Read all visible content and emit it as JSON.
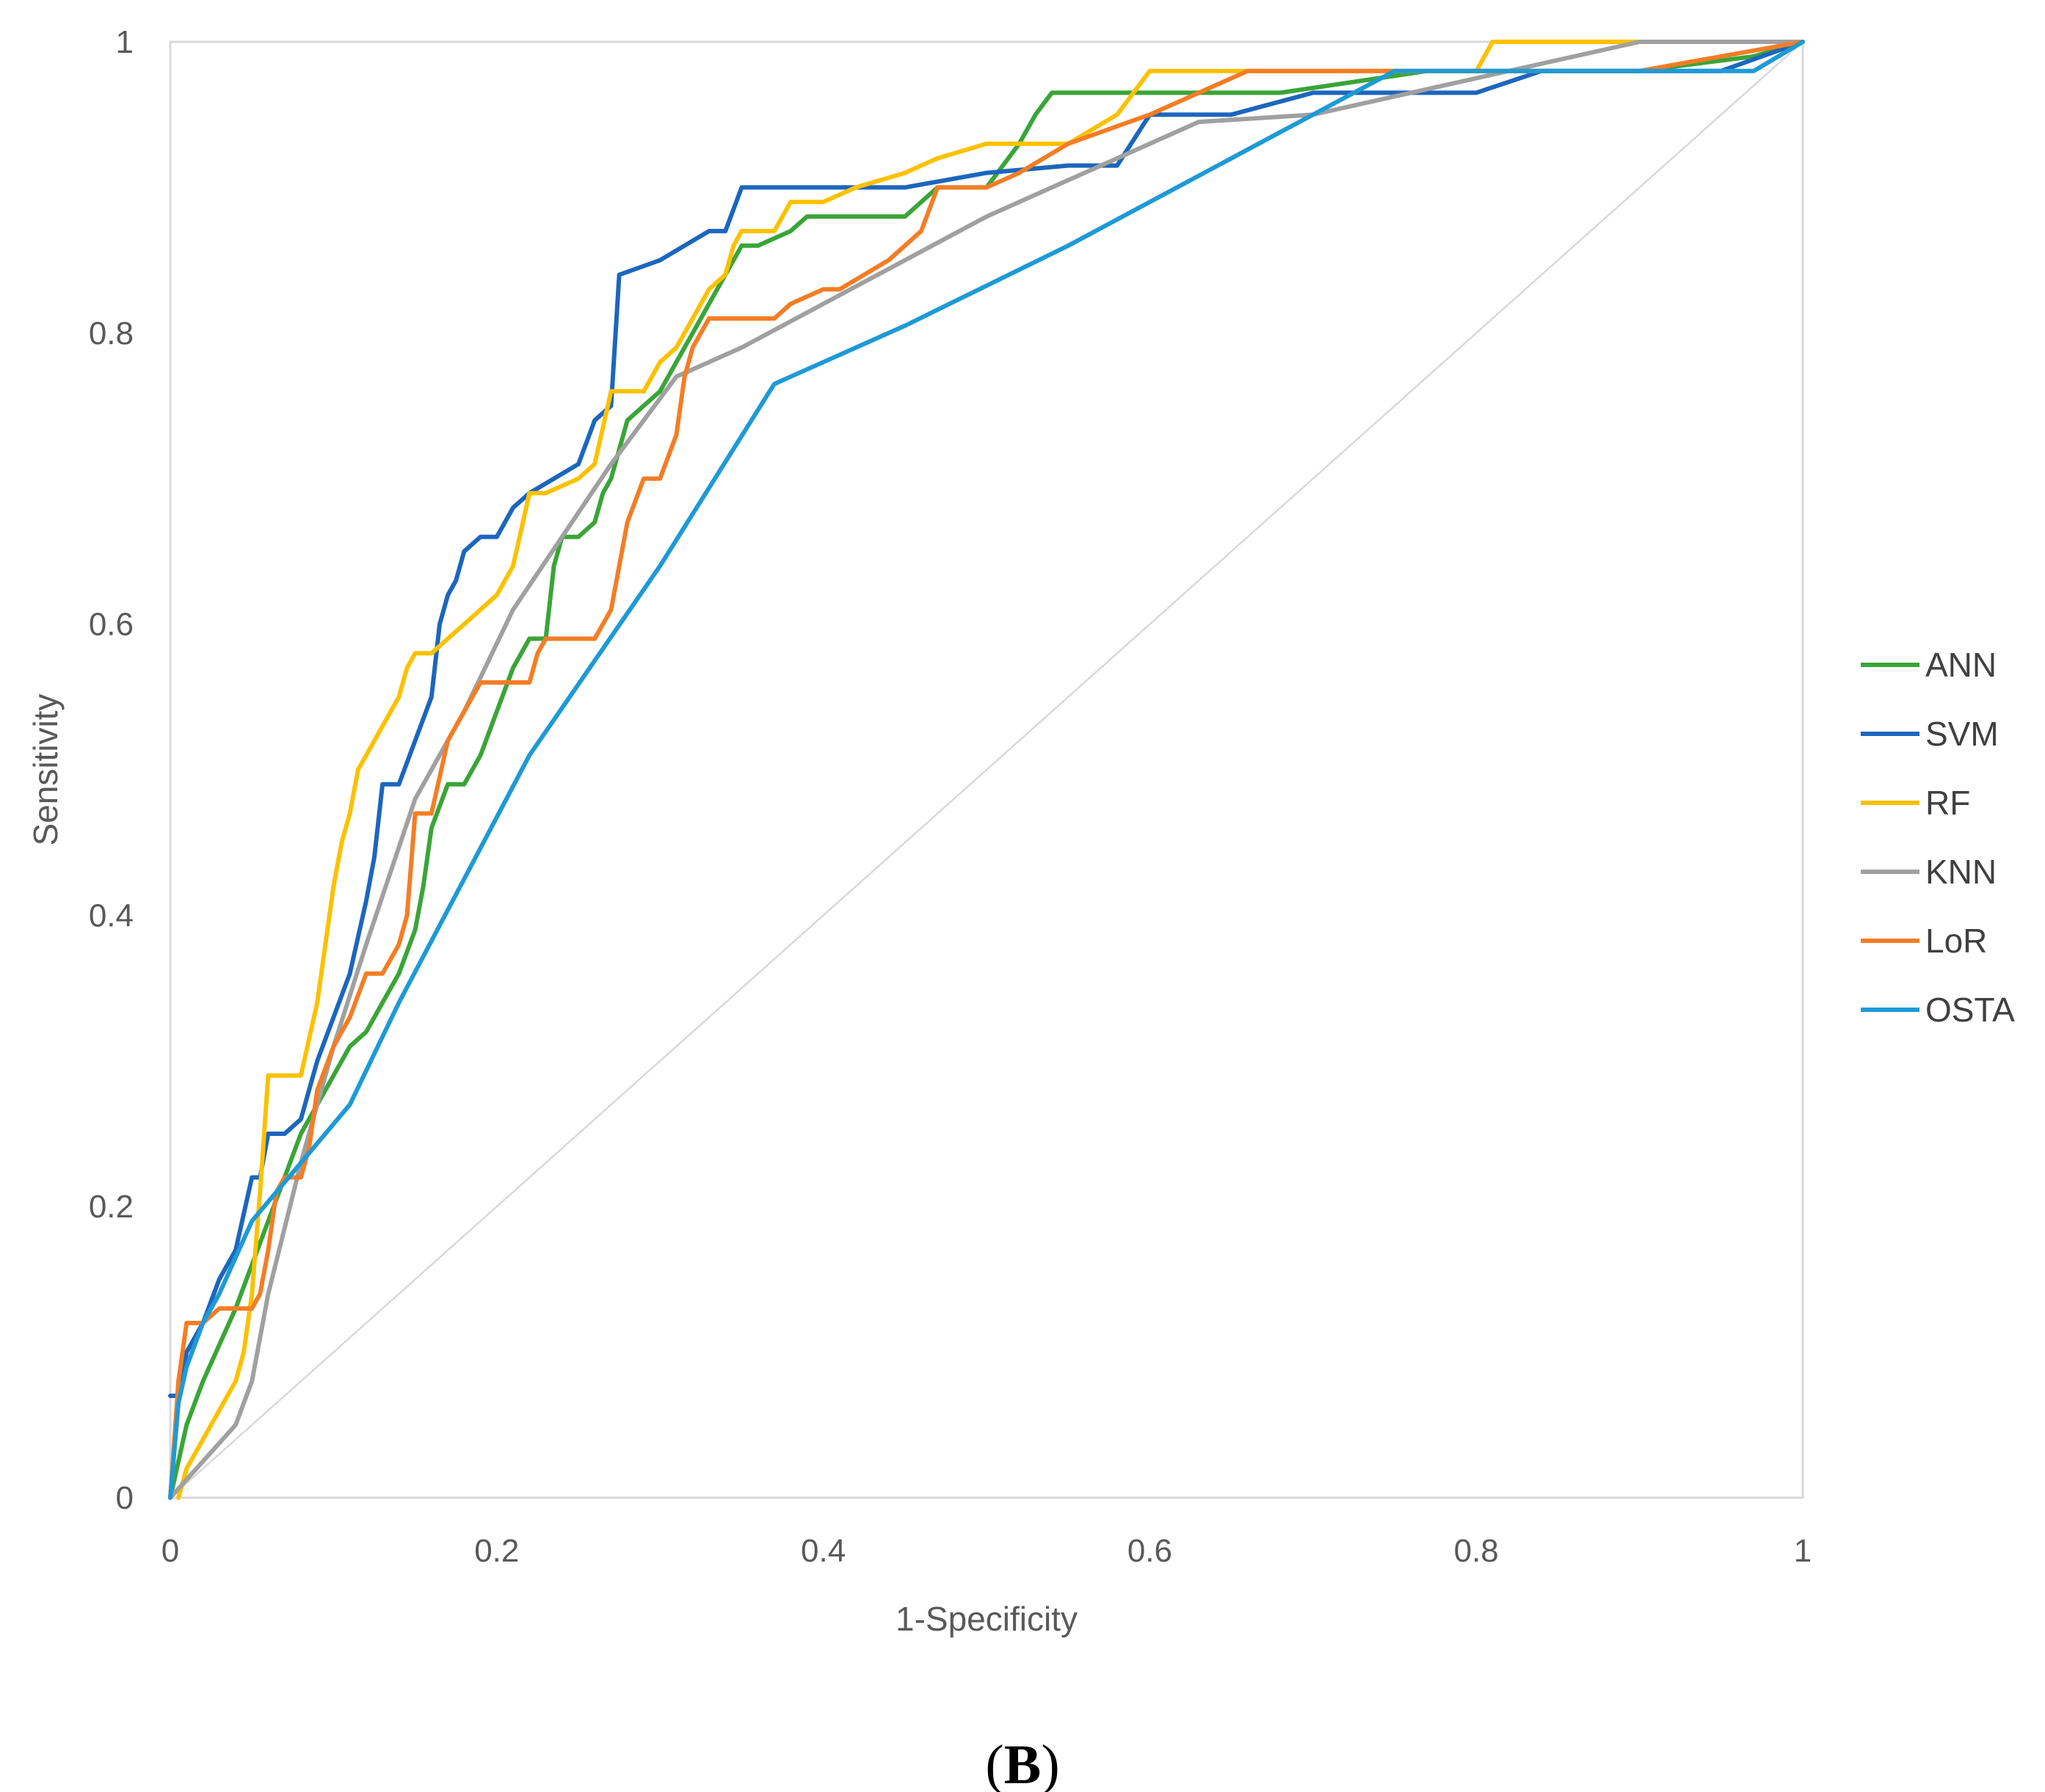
{
  "chart_data": {
    "type": "line",
    "title": "",
    "xlabel": "1-Specificity",
    "ylabel": "Sensitivity",
    "xlim": [
      0,
      1
    ],
    "ylim": [
      0,
      1
    ],
    "xticks": [
      "0",
      "0.2",
      "0.4",
      "0.6",
      "0.8",
      "1"
    ],
    "yticks": [
      "0",
      "0.2",
      "0.4",
      "0.6",
      "0.8",
      "1"
    ],
    "legend_position": "right",
    "panel_label": "B",
    "reference_line": {
      "name": "chance",
      "color": "#d9d9d9",
      "x": [
        0,
        1
      ],
      "y": [
        0,
        1
      ]
    },
    "series": [
      {
        "name": "ANN",
        "color": "#3aa537",
        "x": [
          0,
          0.01,
          0.02,
          0.04,
          0.06,
          0.08,
          0.1,
          0.11,
          0.12,
          0.13,
          0.14,
          0.15,
          0.155,
          0.16,
          0.17,
          0.18,
          0.19,
          0.2,
          0.21,
          0.22,
          0.23,
          0.235,
          0.24,
          0.25,
          0.26,
          0.265,
          0.27,
          0.28,
          0.3,
          0.31,
          0.32,
          0.33,
          0.34,
          0.35,
          0.36,
          0.38,
          0.39,
          0.42,
          0.45,
          0.47,
          0.5,
          0.52,
          0.53,
          0.54,
          0.55,
          0.6,
          0.68,
          0.77,
          0.9,
          0.97,
          1.0
        ],
        "y": [
          0,
          0.05,
          0.08,
          0.13,
          0.19,
          0.25,
          0.29,
          0.31,
          0.32,
          0.34,
          0.36,
          0.39,
          0.42,
          0.46,
          0.49,
          0.49,
          0.51,
          0.54,
          0.57,
          0.59,
          0.59,
          0.64,
          0.66,
          0.66,
          0.67,
          0.69,
          0.7,
          0.74,
          0.76,
          0.78,
          0.8,
          0.82,
          0.84,
          0.86,
          0.86,
          0.87,
          0.88,
          0.88,
          0.88,
          0.9,
          0.9,
          0.93,
          0.95,
          0.965,
          0.965,
          0.965,
          0.965,
          0.98,
          0.98,
          0.99,
          1.0
        ]
      },
      {
        "name": "SVM",
        "color": "#1c66bd",
        "x": [
          0,
          0.005,
          0.01,
          0.02,
          0.03,
          0.04,
          0.05,
          0.055,
          0.06,
          0.07,
          0.08,
          0.09,
          0.1,
          0.11,
          0.12,
          0.125,
          0.13,
          0.14,
          0.15,
          0.16,
          0.165,
          0.17,
          0.175,
          0.18,
          0.19,
          0.2,
          0.21,
          0.22,
          0.25,
          0.26,
          0.27,
          0.275,
          0.3,
          0.33,
          0.34,
          0.35,
          0.37,
          0.4,
          0.45,
          0.5,
          0.55,
          0.58,
          0.6,
          0.65,
          0.7,
          0.8,
          0.84,
          0.9,
          0.95,
          1.0
        ],
        "y": [
          0.07,
          0.07,
          0.1,
          0.12,
          0.15,
          0.17,
          0.22,
          0.22,
          0.25,
          0.25,
          0.26,
          0.3,
          0.33,
          0.36,
          0.41,
          0.44,
          0.49,
          0.49,
          0.52,
          0.55,
          0.6,
          0.62,
          0.63,
          0.65,
          0.66,
          0.66,
          0.68,
          0.69,
          0.71,
          0.74,
          0.75,
          0.84,
          0.85,
          0.87,
          0.87,
          0.9,
          0.9,
          0.9,
          0.9,
          0.91,
          0.915,
          0.915,
          0.95,
          0.95,
          0.965,
          0.965,
          0.98,
          0.98,
          0.98,
          1.0
        ]
      },
      {
        "name": "RF",
        "color": "#fcc100",
        "x": [
          0.005,
          0.01,
          0.015,
          0.02,
          0.03,
          0.04,
          0.045,
          0.05,
          0.055,
          0.06,
          0.07,
          0.08,
          0.09,
          0.095,
          0.1,
          0.105,
          0.11,
          0.115,
          0.12,
          0.13,
          0.14,
          0.145,
          0.15,
          0.16,
          0.17,
          0.18,
          0.19,
          0.2,
          0.21,
          0.22,
          0.23,
          0.25,
          0.26,
          0.27,
          0.28,
          0.29,
          0.3,
          0.31,
          0.32,
          0.33,
          0.34,
          0.345,
          0.35,
          0.36,
          0.37,
          0.375,
          0.38,
          0.4,
          0.42,
          0.45,
          0.47,
          0.5,
          0.55,
          0.58,
          0.6,
          0.65,
          0.7,
          0.8,
          0.81,
          0.9,
          1.0
        ],
        "y": [
          0,
          0.02,
          0.03,
          0.04,
          0.06,
          0.08,
          0.1,
          0.14,
          0.21,
          0.29,
          0.29,
          0.29,
          0.34,
          0.38,
          0.42,
          0.45,
          0.47,
          0.5,
          0.51,
          0.53,
          0.55,
          0.57,
          0.58,
          0.58,
          0.59,
          0.6,
          0.61,
          0.62,
          0.64,
          0.69,
          0.69,
          0.7,
          0.71,
          0.76,
          0.76,
          0.76,
          0.78,
          0.79,
          0.81,
          0.83,
          0.84,
          0.86,
          0.87,
          0.87,
          0.87,
          0.88,
          0.89,
          0.89,
          0.9,
          0.91,
          0.92,
          0.93,
          0.93,
          0.95,
          0.98,
          0.98,
          0.98,
          0.98,
          1.0,
          1.0,
          1.0
        ]
      },
      {
        "name": "KNN",
        "color": "#a0a0a0",
        "x": [
          0,
          0.04,
          0.05,
          0.06,
          0.08,
          0.1,
          0.12,
          0.15,
          0.18,
          0.21,
          0.24,
          0.27,
          0.31,
          0.35,
          0.4,
          0.45,
          0.5,
          0.55,
          0.6,
          0.63,
          0.7,
          0.8,
          0.9,
          1.0
        ],
        "y": [
          0,
          0.05,
          0.08,
          0.14,
          0.23,
          0.31,
          0.38,
          0.48,
          0.54,
          0.61,
          0.66,
          0.71,
          0.77,
          0.79,
          0.82,
          0.85,
          0.88,
          0.905,
          0.93,
          0.945,
          0.95,
          0.975,
          1.0,
          1.0
        ]
      },
      {
        "name": "LoR",
        "color": "#f47d25",
        "x": [
          0,
          0.005,
          0.01,
          0.02,
          0.03,
          0.04,
          0.05,
          0.055,
          0.06,
          0.065,
          0.07,
          0.08,
          0.085,
          0.09,
          0.1,
          0.11,
          0.12,
          0.13,
          0.14,
          0.145,
          0.15,
          0.16,
          0.17,
          0.18,
          0.19,
          0.2,
          0.21,
          0.22,
          0.225,
          0.23,
          0.24,
          0.26,
          0.27,
          0.275,
          0.28,
          0.29,
          0.3,
          0.31,
          0.315,
          0.32,
          0.33,
          0.34,
          0.37,
          0.38,
          0.4,
          0.41,
          0.44,
          0.46,
          0.47,
          0.5,
          0.52,
          0.55,
          0.6,
          0.66,
          0.7,
          0.75,
          0.8,
          0.9,
          1.0
        ],
        "y": [
          0,
          0.08,
          0.12,
          0.12,
          0.13,
          0.13,
          0.13,
          0.14,
          0.17,
          0.21,
          0.22,
          0.22,
          0.24,
          0.28,
          0.31,
          0.33,
          0.36,
          0.36,
          0.38,
          0.4,
          0.47,
          0.47,
          0.52,
          0.54,
          0.56,
          0.56,
          0.56,
          0.56,
          0.58,
          0.59,
          0.59,
          0.59,
          0.61,
          0.64,
          0.67,
          0.7,
          0.7,
          0.73,
          0.77,
          0.79,
          0.81,
          0.81,
          0.81,
          0.82,
          0.83,
          0.83,
          0.85,
          0.87,
          0.9,
          0.9,
          0.91,
          0.93,
          0.95,
          0.98,
          0.98,
          0.98,
          0.98,
          0.98,
          1.0
        ]
      },
      {
        "name": "OSTA",
        "color": "#1e9ad6",
        "x": [
          0,
          0.005,
          0.01,
          0.02,
          0.03,
          0.05,
          0.11,
          0.14,
          0.22,
          0.3,
          0.37,
          0.45,
          0.55,
          0.65,
          0.75,
          0.85,
          0.97,
          1.0
        ],
        "y": [
          0,
          0.065,
          0.09,
          0.12,
          0.14,
          0.19,
          0.27,
          0.34,
          0.51,
          0.64,
          0.765,
          0.805,
          0.86,
          0.92,
          0.98,
          0.98,
          0.98,
          1.0
        ]
      }
    ]
  }
}
